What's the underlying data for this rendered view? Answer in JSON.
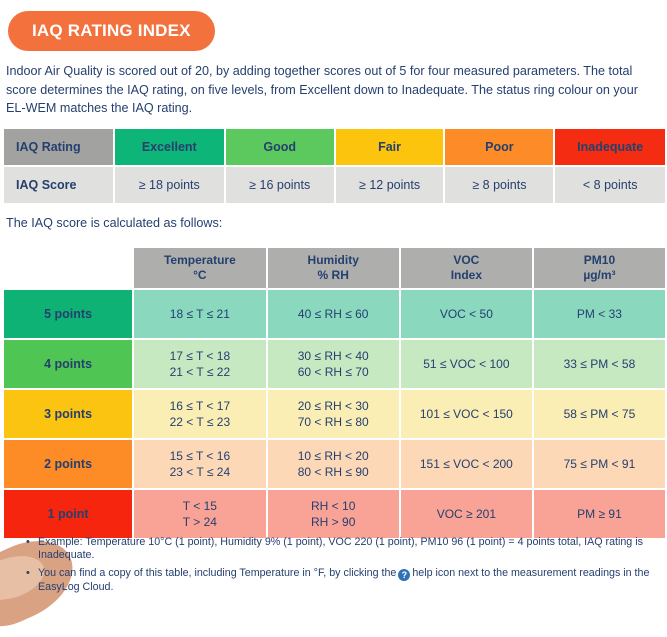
{
  "header": {
    "badge": "IAQ RATING INDEX"
  },
  "intro_text": "Indoor Air Quality is scored out of 20, by adding together scores out of 5 for four measured parameters. The total score determines the IAQ rating, on five levels, from Excellent down to Inadequate. The status ring colour on your EL-WEM matches the IAQ rating.",
  "calc_intro": "The IAQ score is calculated as follows:",
  "colors": {
    "accent_orange": "#f2713c",
    "navy_text": "#25406f",
    "rating_label_header_bg": "#a2a3a1",
    "score_row_bg": "#e0e0de",
    "score_table_header_bg": "#aeaeac"
  },
  "rating_table": {
    "rating_row_label": "IAQ Rating",
    "score_row_label": "IAQ Score",
    "columns": [
      {
        "rating": "Excellent",
        "score": "≥ 18 points",
        "color": "#0db578"
      },
      {
        "rating": "Good",
        "score": "≥ 16 points",
        "color": "#5bc95e"
      },
      {
        "rating": "Fair",
        "score": "≥ 12 points",
        "color": "#fcc40d"
      },
      {
        "rating": "Poor",
        "score": "≥ 8 points",
        "color": "#fd8c28"
      },
      {
        "rating": "Inadequate",
        "score": "< 8 points",
        "color": "#f42d12"
      }
    ]
  },
  "score_table": {
    "column_headers": [
      {
        "line1": "Temperature",
        "line2": "°C"
      },
      {
        "line1": "Humidity",
        "line2": "% RH"
      },
      {
        "line1": "VOC",
        "line2": "Index"
      },
      {
        "line1": "PM10",
        "line2": "µg/m³"
      }
    ],
    "rows": [
      {
        "points": "5 points",
        "label_color": "#0fb275",
        "cell_color": "#8ad9bf",
        "temperature": [
          "18 ≤ T ≤ 21"
        ],
        "humidity": [
          "40 ≤ RH ≤ 60"
        ],
        "voc": "VOC < 50",
        "pm10": "PM < 33"
      },
      {
        "points": "4 points",
        "label_color": "#4fc654",
        "cell_color": "#c7e9c2",
        "temperature": [
          "17 ≤ T < 18",
          "21 < T ≤ 22"
        ],
        "humidity": [
          "30 ≤ RH < 40",
          "60 < RH ≤ 70"
        ],
        "voc": "51 ≤ VOC < 100",
        "pm10": "33 ≤ PM < 58"
      },
      {
        "points": "3 points",
        "label_color": "#fbc411",
        "cell_color": "#faeeb5",
        "temperature": [
          "16 ≤ T < 17",
          "22 < T ≤ 23"
        ],
        "humidity": [
          "20 ≤ RH < 30",
          "70 < RH ≤ 80"
        ],
        "voc": "101 ≤ VOC < 150",
        "pm10": "58 ≤ PM < 75"
      },
      {
        "points": "2 points",
        "label_color": "#fd8c26",
        "cell_color": "#fcd8b7",
        "temperature": [
          "15 ≤ T < 16",
          "23 < T ≤ 24"
        ],
        "humidity": [
          "10 ≤ RH < 20",
          "80 < RH ≤ 90"
        ],
        "voc": "151 ≤ VOC < 200",
        "pm10": "75 ≤ PM < 91"
      },
      {
        "points": "1 point",
        "label_color": "#f6250e",
        "cell_color": "#f9a396",
        "temperature": [
          "T < 15",
          "T > 24"
        ],
        "humidity": [
          "RH < 10",
          "RH > 90"
        ],
        "voc": "VOC ≥ 201",
        "pm10": "PM ≥ 91"
      }
    ]
  },
  "footnotes": {
    "bullet_glyph": "•",
    "bullet1": "Example: Temperature 10°C (1 point), Humidity 9% (1 point), VOC 220 (1 point), PM10 96 (1 point) = 4 points total, IAQ rating is Inadequate.",
    "bullet2_before": "You can find a copy of this table, including Temperature in °F, by clicking the",
    "help_icon_glyph": "?",
    "bullet2_after": "help icon next to the measurement readings in the EasyLog Cloud."
  }
}
